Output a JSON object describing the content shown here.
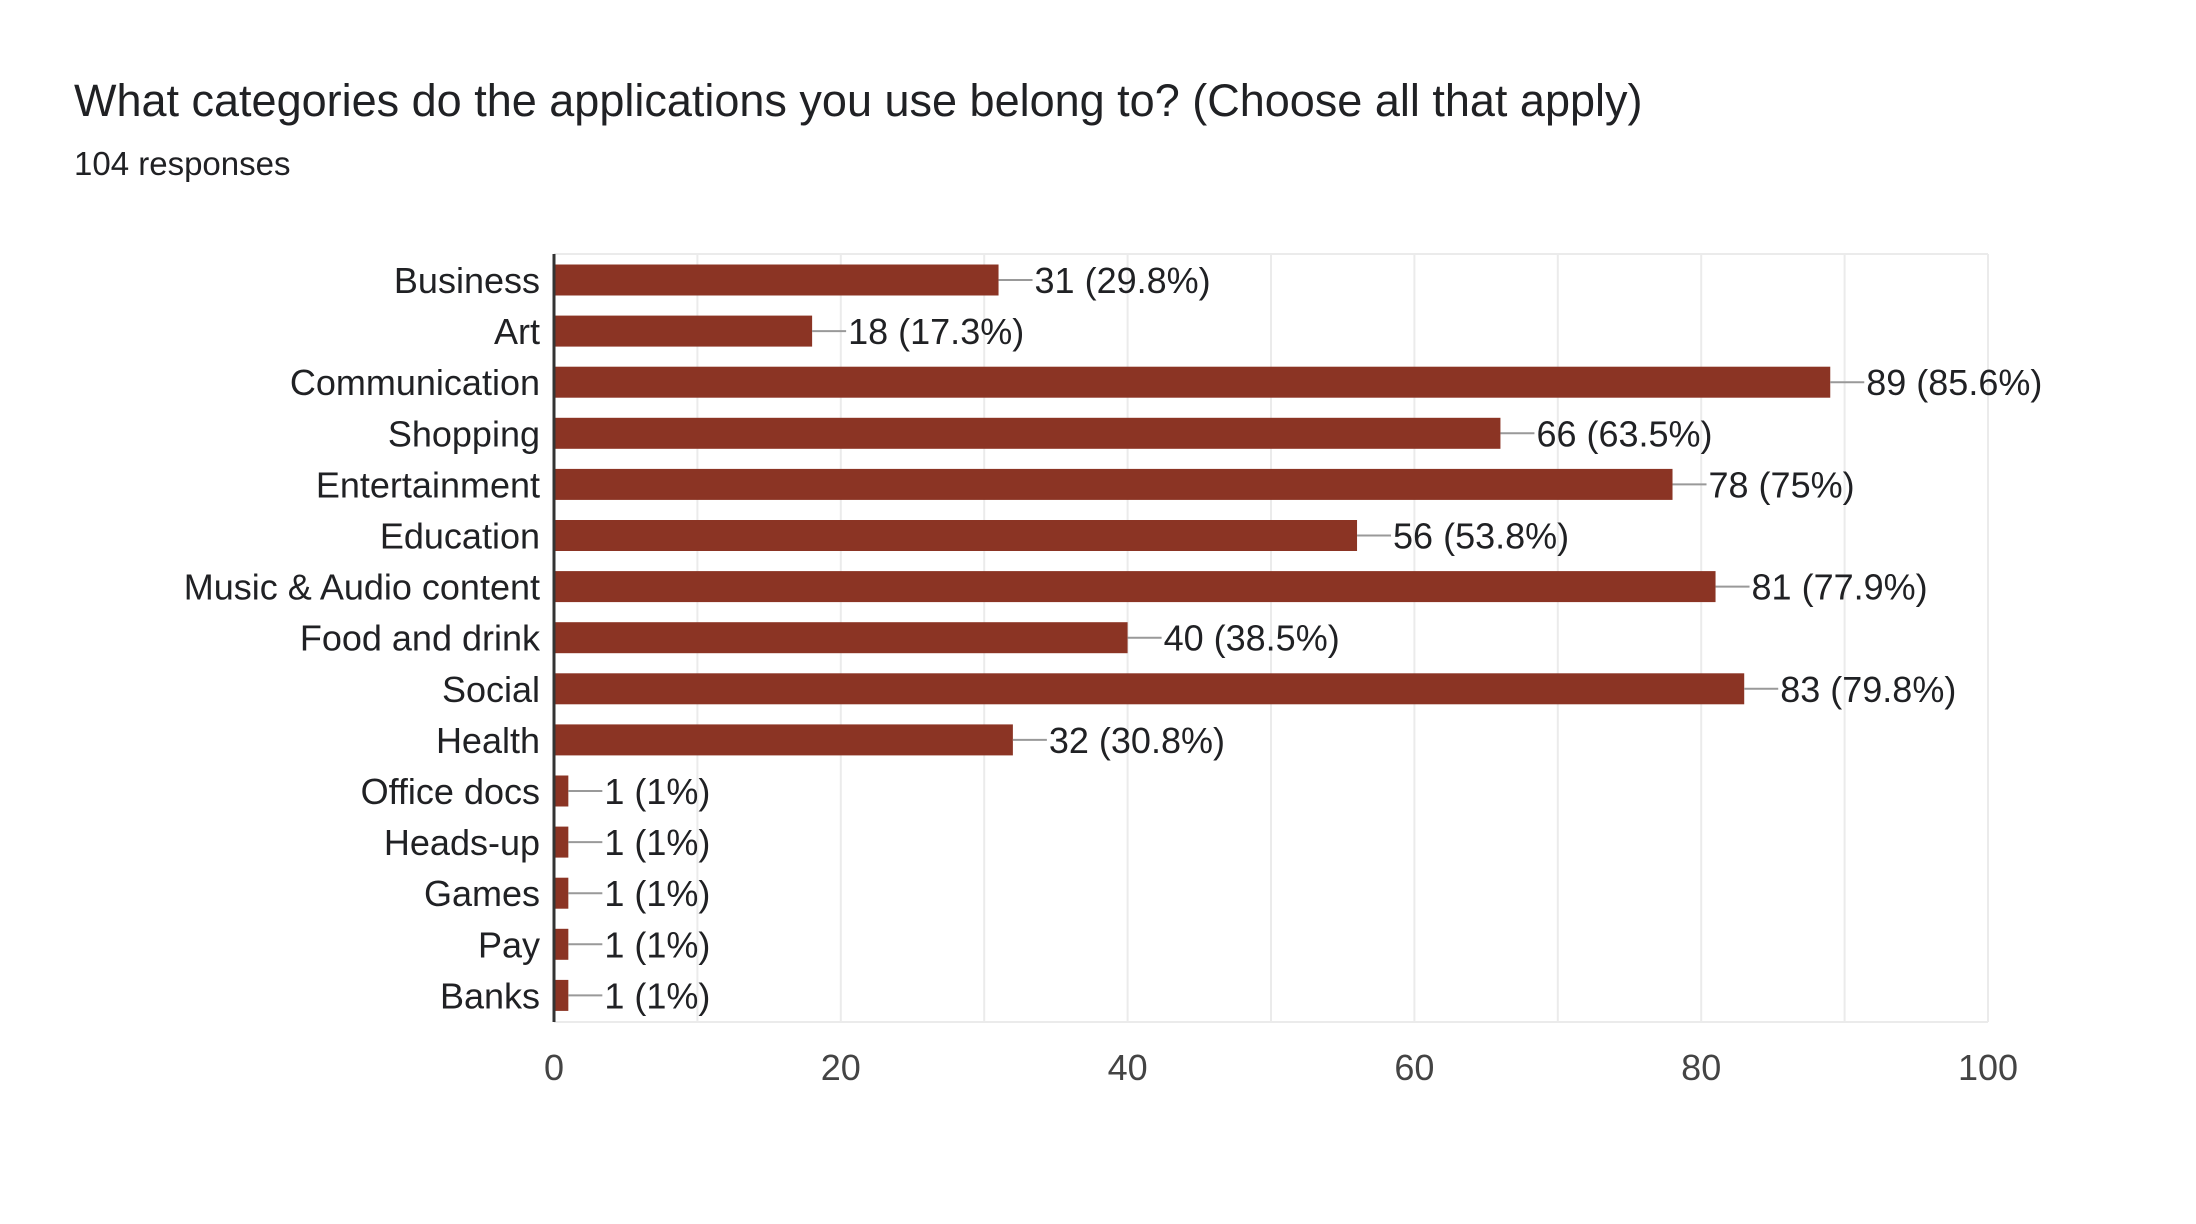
{
  "header": {
    "title": "What categories do the applications you use belong to? (Choose all that apply)",
    "responses": "104 responses"
  },
  "colors": {
    "bar": "#8b3424",
    "grid": "#ebebeb",
    "axis": "#333333",
    "leader": "#999999"
  },
  "chart_data": {
    "type": "bar",
    "orientation": "horizontal",
    "title": "What categories do the applications you use belong to? (Choose all that apply)",
    "subtitle": "104 responses",
    "categories": [
      "Business",
      "Art",
      "Communication",
      "Shopping",
      "Entertainment",
      "Education",
      "Music & Audio content",
      "Food and drink",
      "Social",
      "Health",
      "Office docs",
      "Heads-up",
      "Games",
      "Pay",
      "Banks"
    ],
    "values": [
      31,
      18,
      89,
      66,
      78,
      56,
      81,
      40,
      83,
      32,
      1,
      1,
      1,
      1,
      1
    ],
    "labels": [
      "31 (29.8%)",
      "18 (17.3%)",
      "89 (85.6%)",
      "66 (63.5%)",
      "78 (75%)",
      "56 (53.8%)",
      "81 (77.9%)",
      "40 (38.5%)",
      "83 (79.8%)",
      "32 (30.8%)",
      "1 (1%)",
      "1 (1%)",
      "1 (1%)",
      "1 (1%)",
      "1 (1%)"
    ],
    "xlim": [
      0,
      100
    ],
    "xticks": [
      0,
      20,
      40,
      60,
      80,
      100
    ],
    "minor_grid_step": 10,
    "grid": true,
    "legend": "none"
  }
}
